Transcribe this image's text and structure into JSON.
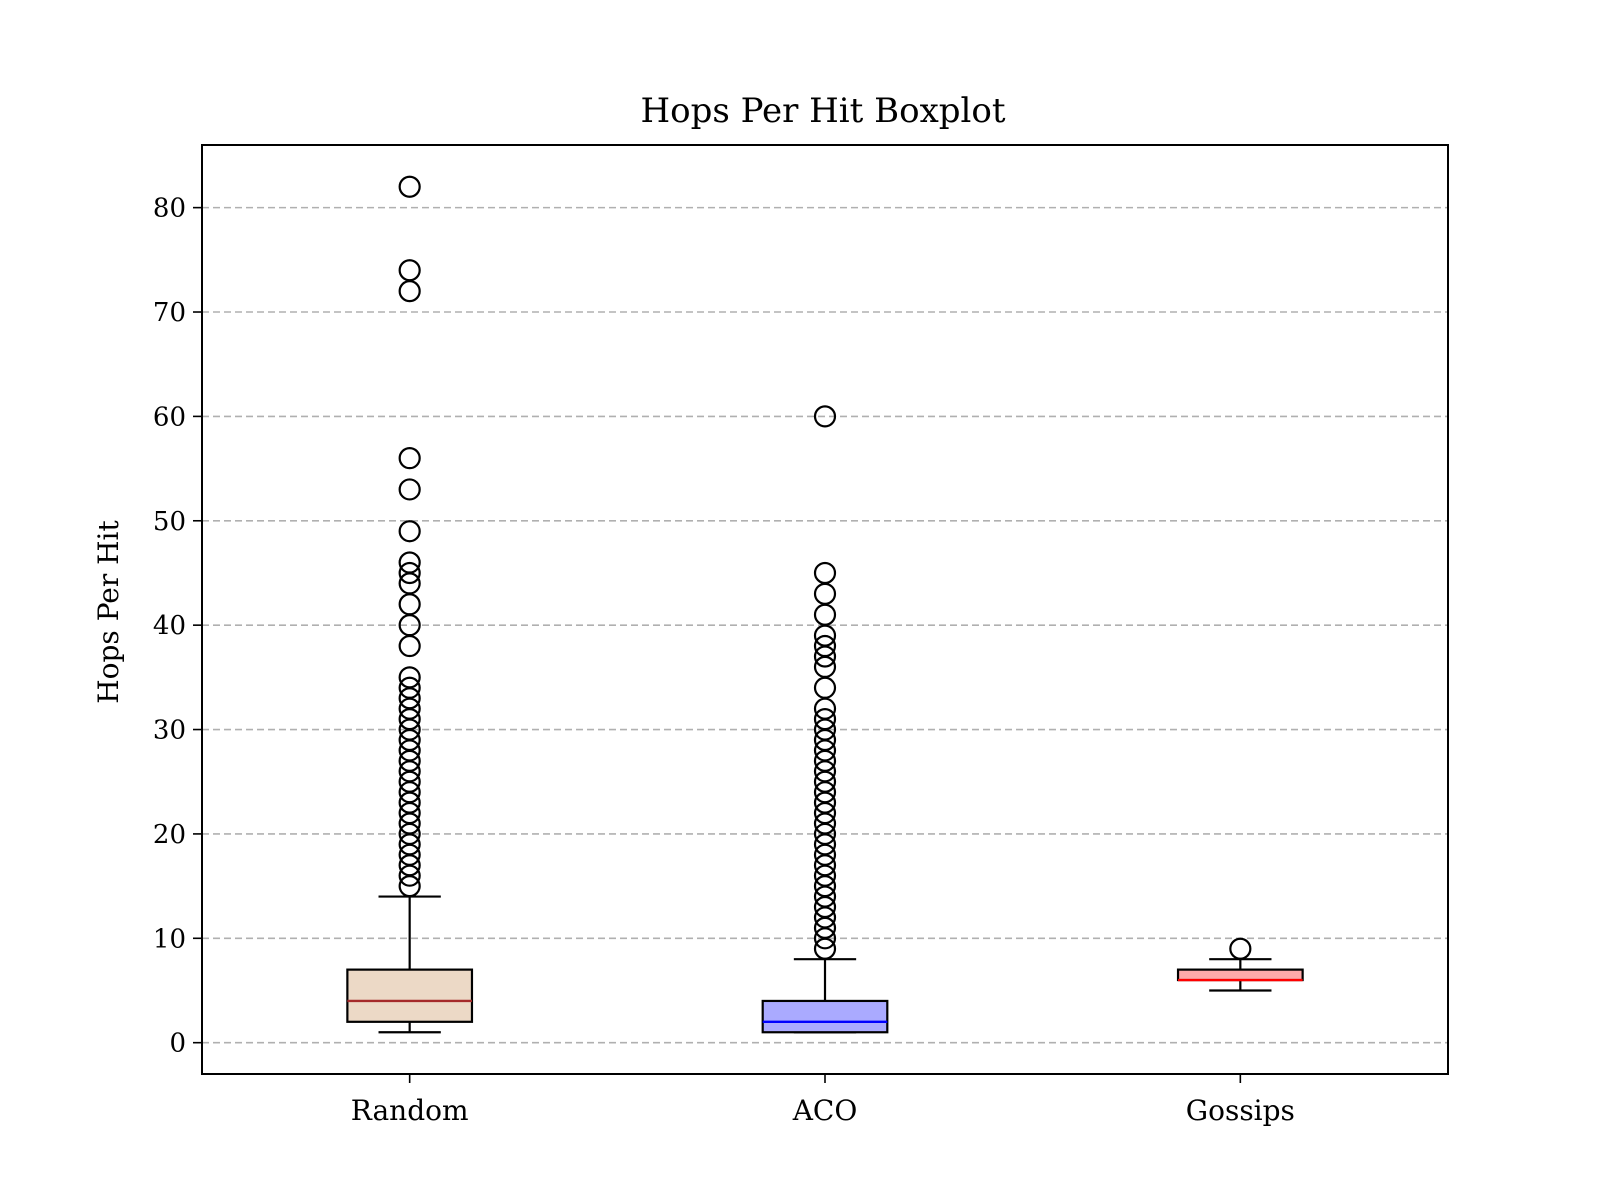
{
  "chart_data": {
    "type": "boxplot",
    "title": "Hops Per Hit Boxplot",
    "xlabel": "",
    "ylabel": "Hops Per Hit",
    "ylim": [
      -3,
      86
    ],
    "yticks": [
      0,
      10,
      20,
      30,
      40,
      50,
      60,
      70,
      80
    ],
    "grid": {
      "y": true,
      "style": "dashed"
    },
    "categories": [
      "Random",
      "ACO",
      "Gossips"
    ],
    "boxes": [
      {
        "category": "Random",
        "whisker_low": 1,
        "q1": 2,
        "median": 4,
        "q3": 7,
        "whisker_high": 14,
        "outliers": [
          15,
          16,
          17,
          18,
          19,
          20,
          21,
          22,
          23,
          24,
          25,
          26,
          27,
          28,
          29,
          30,
          31,
          32,
          33,
          34,
          35,
          38,
          40,
          42,
          44,
          45,
          46,
          49,
          53,
          56,
          72,
          74,
          82
        ],
        "fill_color": "#ecd9c6",
        "median_color": "#a52a2a"
      },
      {
        "category": "ACO",
        "whisker_low": 1,
        "q1": 1,
        "median": 2,
        "q3": 4,
        "whisker_high": 8,
        "outliers": [
          9,
          10,
          11,
          12,
          13,
          14,
          15,
          16,
          17,
          18,
          19,
          20,
          21,
          22,
          23,
          24,
          25,
          26,
          27,
          28,
          29,
          30,
          31,
          32,
          34,
          36,
          37,
          38,
          39,
          41,
          43,
          45,
          60
        ],
        "fill_color": "#aaaaff",
        "median_color": "#0000ff"
      },
      {
        "category": "Gossips",
        "whisker_low": 5,
        "q1": 6,
        "median": 6,
        "q3": 7,
        "whisker_high": 8,
        "outliers": [
          9
        ],
        "fill_color": "#ffaaaa",
        "median_color": "#ff0000"
      }
    ]
  }
}
